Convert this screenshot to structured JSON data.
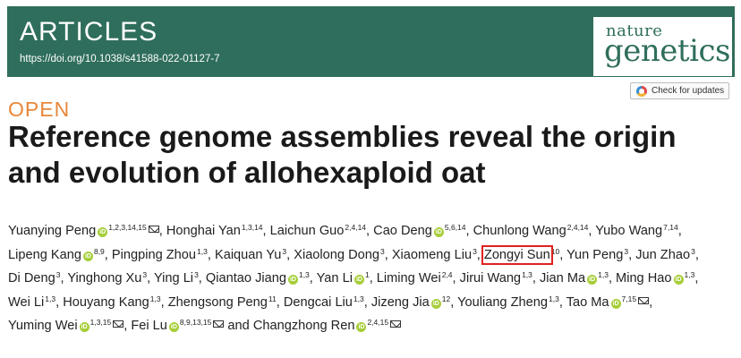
{
  "banner": {
    "section": "ARTICLES",
    "doi": "https://doi.org/10.1038/s41588-022-01127-7",
    "logo_line1": "nature",
    "logo_line2": "genetics",
    "accent_color": "#2f6e5c"
  },
  "check_updates_label": "Check for updates",
  "access_label": "OPEN",
  "title_line1": "Reference genome assemblies reveal the origin",
  "title_line2": "and evolution of allohexaploid oat",
  "authors": [
    {
      "name": "Yuanying Peng",
      "aff": "1,2,3,14,15",
      "orcid": true,
      "mail": true
    },
    {
      "name": "Honghai Yan",
      "aff": "1,3,14",
      "orcid": false,
      "mail": false
    },
    {
      "name": "Laichun Guo",
      "aff": "2,4,14",
      "orcid": false,
      "mail": false
    },
    {
      "name": "Cao Deng",
      "aff": "5,6,14",
      "orcid": true,
      "mail": false
    },
    {
      "name": "Chunlong Wang",
      "aff": "2,4,14",
      "orcid": false,
      "mail": false
    },
    {
      "name": "Yubo Wang",
      "aff": "7,14",
      "orcid": false,
      "mail": false
    },
    {
      "name": "Lipeng Kang",
      "aff": "8,9",
      "orcid": true,
      "mail": false
    },
    {
      "name": "Pingping Zhou",
      "aff": "1,3",
      "orcid": false,
      "mail": false
    },
    {
      "name": "Kaiquan Yu",
      "aff": "3",
      "orcid": false,
      "mail": false
    },
    {
      "name": "Xiaolong Dong",
      "aff": "3",
      "orcid": false,
      "mail": false
    },
    {
      "name": "Xiaomeng Liu",
      "aff": "3",
      "orcid": false,
      "mail": false
    },
    {
      "name": "Zongyi Sun",
      "aff": "10",
      "orcid": false,
      "mail": false,
      "highlight": true
    },
    {
      "name": "Yun Peng",
      "aff": "3",
      "orcid": false,
      "mail": false
    },
    {
      "name": "Jun Zhao",
      "aff": "3",
      "orcid": false,
      "mail": false
    },
    {
      "name": "Di Deng",
      "aff": "3",
      "orcid": false,
      "mail": false
    },
    {
      "name": "Yinghong Xu",
      "aff": "3",
      "orcid": false,
      "mail": false
    },
    {
      "name": "Ying Li",
      "aff": "3",
      "orcid": false,
      "mail": false
    },
    {
      "name": "Qiantao Jiang",
      "aff": "1,3",
      "orcid": true,
      "mail": false
    },
    {
      "name": "Yan Li",
      "aff": "1",
      "orcid": true,
      "mail": false
    },
    {
      "name": "Liming Wei",
      "aff": "2,4",
      "orcid": false,
      "mail": false
    },
    {
      "name": "Jirui Wang",
      "aff": "1,3",
      "orcid": false,
      "mail": false
    },
    {
      "name": "Jian Ma",
      "aff": "1,3",
      "orcid": true,
      "mail": false
    },
    {
      "name": "Ming Hao",
      "aff": "1,3",
      "orcid": true,
      "mail": false
    },
    {
      "name": "Wei Li",
      "aff": "1,3",
      "orcid": false,
      "mail": false
    },
    {
      "name": "Houyang Kang",
      "aff": "1,3",
      "orcid": false,
      "mail": false
    },
    {
      "name": "Zhengsong Peng",
      "aff": "11",
      "orcid": false,
      "mail": false
    },
    {
      "name": "Dengcai Liu",
      "aff": "1,3",
      "orcid": false,
      "mail": false
    },
    {
      "name": "Jizeng Jia",
      "aff": "12",
      "orcid": true,
      "mail": false
    },
    {
      "name": "Youliang Zheng",
      "aff": "1,3",
      "orcid": false,
      "mail": false
    },
    {
      "name": "Tao Ma",
      "aff": "7,15",
      "orcid": true,
      "mail": true
    },
    {
      "name": "Yuming Wei",
      "aff": "1,3,15",
      "orcid": true,
      "mail": true
    },
    {
      "name": "Fei Lu",
      "aff": "8,9,13,15",
      "orcid": true,
      "mail": true
    },
    {
      "name": "Changzhong Ren",
      "aff": "2,4,15",
      "orcid": true,
      "mail": true
    }
  ],
  "separator": ", ",
  "last_separator": " and "
}
